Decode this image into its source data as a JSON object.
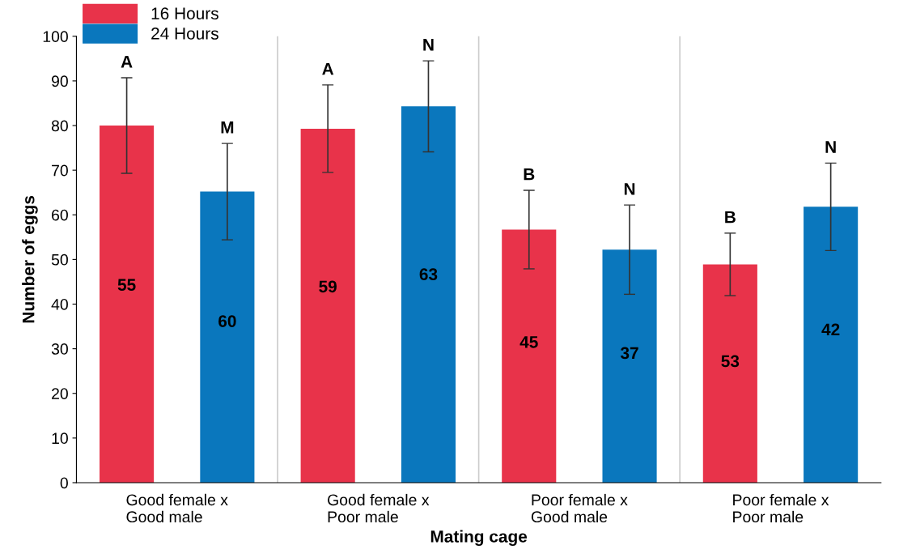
{
  "chart_data": {
    "type": "bar",
    "xlabel": "Mating cage",
    "ylabel": "Number of eggs",
    "categories": [
      "Good female x\nGood male",
      "Good female x\nPoor male",
      "Poor female x\nGood male",
      "Poor female x\nPoor male"
    ],
    "series": [
      {
        "name": "16 Hours",
        "color": "#e8334a",
        "values": [
          80,
          79.3,
          56.7,
          48.9
        ],
        "errors": [
          10.7,
          9.8,
          8.8,
          7
        ]
      },
      {
        "name": "24 Hours",
        "color": "#0a77bd",
        "values": [
          65.2,
          84.3,
          52.2,
          61.8
        ],
        "errors": [
          10.8,
          10.2,
          10,
          9.8
        ]
      }
    ],
    "annotations": [
      "A",
      "M",
      "A",
      "N",
      "B",
      "N",
      "B",
      "N",
      "55",
      "60",
      "59",
      "63",
      "45",
      "37",
      "53",
      "42"
    ],
    "ylim": [
      0,
      100
    ],
    "yticks": [
      0,
      10,
      20,
      30,
      40,
      50,
      60,
      70,
      80,
      90,
      100
    ],
    "grid": false,
    "legend": "top left"
  }
}
